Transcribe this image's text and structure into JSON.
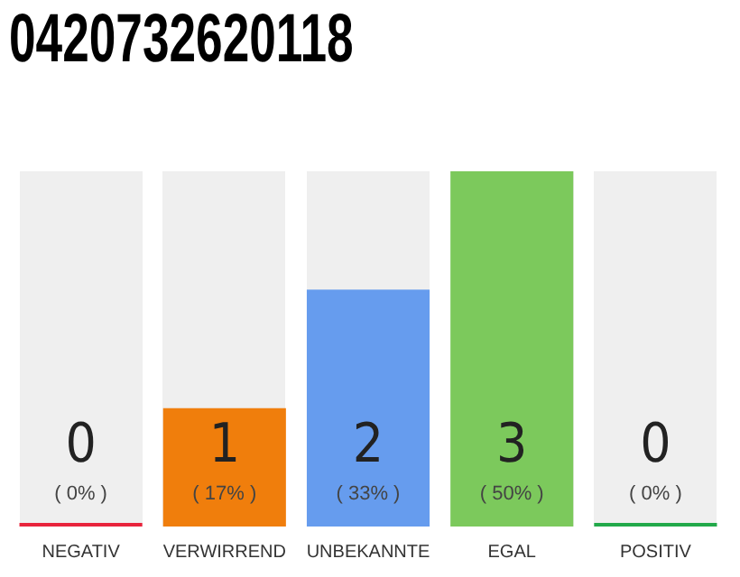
{
  "chart_data": {
    "type": "bar",
    "title": "0420732620118",
    "categories": [
      "NEGATIV",
      "VERWIRREND",
      "UNBEKANNTE",
      "EGAL",
      "POSITIV"
    ],
    "values": [
      0,
      1,
      2,
      3,
      0
    ],
    "colors": [
      "#e8243c",
      "#f07e0c",
      "#669cee",
      "#7cc95c",
      "#22a94a"
    ],
    "value_labels": [
      "0\n( 0% )",
      "1\n( 17% )",
      "2\n( 33% )",
      "3\n( 50% )",
      "0\n( 0% )"
    ],
    "grid": false,
    "legend": false
  }
}
